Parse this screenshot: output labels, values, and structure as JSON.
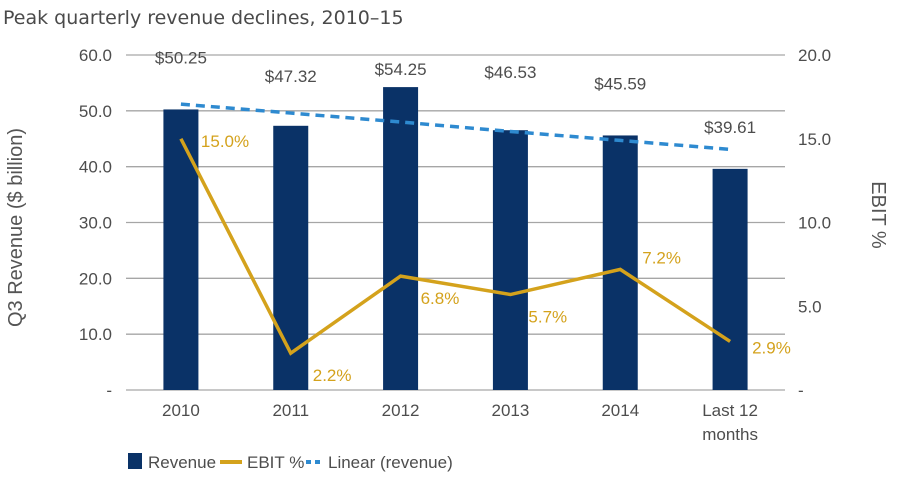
{
  "chart_data": {
    "type": "bar",
    "title": "Peak quarterly revenue declines, 2010–15",
    "xlabel": "",
    "ylabel": "Q3 Revenue ($ billion)",
    "y2label": "EBIT %",
    "categories": [
      "2010",
      "2011",
      "2012",
      "2013",
      "2014",
      "Last 12 months"
    ],
    "category_lines": [
      [
        "2010"
      ],
      [
        "2011"
      ],
      [
        "2012"
      ],
      [
        "2013"
      ],
      [
        "2014"
      ],
      [
        "Last 12",
        "months"
      ]
    ],
    "ylim": [
      0,
      60
    ],
    "y2lim": [
      0,
      20
    ],
    "yticks": [
      0,
      10,
      20,
      30,
      40,
      50,
      60
    ],
    "ytick_labels": [
      "-",
      "10.0",
      "20.0",
      "30.0",
      "40.0",
      "50.0",
      "60.0"
    ],
    "y2ticks": [
      0,
      5,
      10,
      15,
      20
    ],
    "y2tick_labels": [
      "-",
      "5.0",
      "10.0",
      "15.0",
      "20.0"
    ],
    "grid": true,
    "series": [
      {
        "name": "Revenue",
        "type": "bar",
        "axis": "left",
        "color": "#0a3267",
        "values": [
          50.25,
          47.32,
          54.25,
          46.53,
          45.59,
          39.61
        ],
        "labels": [
          "$50.25",
          "$47.32",
          "$54.25",
          "$46.53",
          "$45.59",
          "$39.61"
        ]
      },
      {
        "name": "EBIT %",
        "type": "line",
        "axis": "right",
        "color": "#d4a21c",
        "values": [
          15.0,
          2.2,
          6.8,
          5.7,
          7.2,
          2.9
        ],
        "labels": [
          "15.0%",
          "2.2%",
          "6.8%",
          "5.7%",
          "7.2%",
          "2.9%"
        ]
      },
      {
        "name": "Linear (revenue)",
        "type": "trendline",
        "axis": "left",
        "color": "#2e8ad0",
        "values": [
          51.2,
          49.6,
          48.0,
          46.3,
          44.7,
          43.1
        ]
      }
    ],
    "legend": {
      "position": "bottom-left",
      "items": [
        "Revenue",
        "EBIT %",
        "Linear (revenue)"
      ]
    }
  }
}
